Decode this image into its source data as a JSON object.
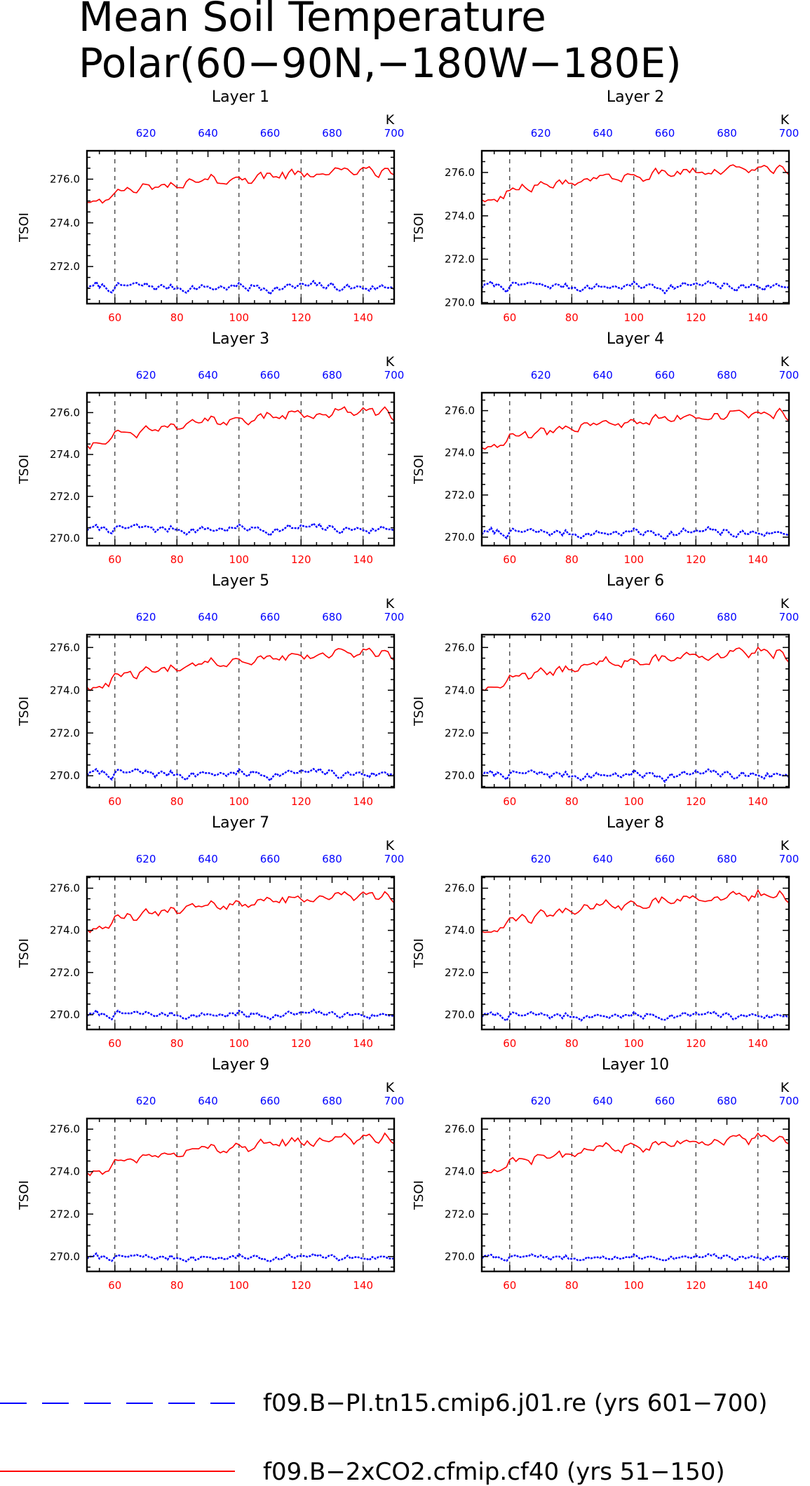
{
  "chart_data": {
    "type": "line",
    "title": [
      "Mean Soil Temperature",
      "Polar(60−90N,−180W−180E)"
    ],
    "ylabel": "TSOI",
    "bottom_axis": {
      "range": [
        51,
        150
      ],
      "ticks": [
        60,
        80,
        100,
        120,
        140
      ],
      "color": "#ff0000"
    },
    "top_axis": {
      "range": [
        601,
        700
      ],
      "ticks": [
        620,
        640,
        660,
        680,
        700
      ],
      "unit": "K",
      "color": "#0000ff"
    },
    "grid": "vertical dashed lines at 60, 80, 100, 120, 140",
    "legend_position": "bottom",
    "legend": [
      {
        "label": "f09.B−PI.tn15.cmip6.j01.re (yrs 601−700)",
        "color": "#0000ff",
        "style": "dashed"
      },
      {
        "label": "f09.B−2xCO2.cfmip.cf40 (yrs 51−150)",
        "color": "#ff0000",
        "style": "solid"
      }
    ],
    "panels": [
      {
        "title": "Layer 1",
        "ylim": [
          270.3,
          277.3
        ],
        "yticks": [
          "272.0",
          "274.0",
          "276.0"
        ],
        "y": [
          272,
          274,
          276
        ],
        "series": [
          {
            "color": "#ff0000",
            "style": "solid",
            "start": 275.0,
            "end": 276.4,
            "final": 276.2
          },
          {
            "color": "#0000ff",
            "style": "dashed",
            "mean": 271.05,
            "amp": 0.25
          }
        ]
      },
      {
        "title": "Layer 2",
        "ylim": [
          269.95,
          277.0
        ],
        "yticks": [
          "270.0",
          "272.0",
          "274.0",
          "276.0"
        ],
        "y": [
          270,
          272,
          274,
          276
        ],
        "series": [
          {
            "color": "#ff0000",
            "style": "solid",
            "start": 274.8,
            "end": 276.2,
            "final": 275.9
          },
          {
            "color": "#0000ff",
            "style": "dashed",
            "mean": 270.75,
            "amp": 0.25
          }
        ]
      },
      {
        "title": "Layer 3",
        "ylim": [
          269.65,
          276.95
        ],
        "yticks": [
          "270.0",
          "272.0",
          "274.0",
          "276.0"
        ],
        "y": [
          270,
          272,
          274,
          276
        ],
        "series": [
          {
            "color": "#ff0000",
            "style": "solid",
            "start": 274.5,
            "end": 276.1,
            "final": 275.6
          },
          {
            "color": "#0000ff",
            "style": "dashed",
            "mean": 270.45,
            "amp": 0.25
          }
        ]
      },
      {
        "title": "Layer 4",
        "ylim": [
          269.6,
          276.85
        ],
        "yticks": [
          "270.0",
          "272.0",
          "274.0",
          "276.0"
        ],
        "y": [
          270,
          272,
          274,
          276
        ],
        "series": [
          {
            "color": "#ff0000",
            "style": "solid",
            "start": 274.3,
            "end": 275.9,
            "final": 275.5
          },
          {
            "color": "#0000ff",
            "style": "dashed",
            "mean": 270.2,
            "amp": 0.25
          }
        ]
      },
      {
        "title": "Layer 5",
        "ylim": [
          269.45,
          276.6
        ],
        "yticks": [
          "270.0",
          "272.0",
          "274.0",
          "276.0"
        ],
        "y": [
          270,
          272,
          274,
          276
        ],
        "series": [
          {
            "color": "#ff0000",
            "style": "solid",
            "start": 274.2,
            "end": 275.8,
            "final": 275.4
          },
          {
            "color": "#0000ff",
            "style": "dashed",
            "mean": 270.1,
            "amp": 0.25
          }
        ]
      },
      {
        "title": "Layer 6",
        "ylim": [
          269.45,
          276.6
        ],
        "yticks": [
          "270.0",
          "272.0",
          "274.0",
          "276.0"
        ],
        "y": [
          270,
          272,
          274,
          276
        ],
        "series": [
          {
            "color": "#ff0000",
            "style": "solid",
            "start": 274.1,
            "end": 275.8,
            "final": 275.3
          },
          {
            "color": "#0000ff",
            "style": "dashed",
            "mean": 270.05,
            "amp": 0.25
          }
        ]
      },
      {
        "title": "Layer 7",
        "ylim": [
          269.3,
          276.55
        ],
        "yticks": [
          "270.0",
          "272.0",
          "274.0",
          "276.0"
        ],
        "y": [
          270,
          272,
          274,
          276
        ],
        "series": [
          {
            "color": "#ff0000",
            "style": "solid",
            "start": 274.1,
            "end": 275.7,
            "final": 275.3
          },
          {
            "color": "#0000ff",
            "style": "dashed",
            "mean": 270.0,
            "amp": 0.22
          }
        ]
      },
      {
        "title": "Layer 8",
        "ylim": [
          269.3,
          276.55
        ],
        "yticks": [
          "270.0",
          "272.0",
          "274.0",
          "276.0"
        ],
        "y": [
          270,
          272,
          274,
          276
        ],
        "series": [
          {
            "color": "#ff0000",
            "style": "solid",
            "start": 274.0,
            "end": 275.7,
            "final": 275.3
          },
          {
            "color": "#0000ff",
            "style": "dashed",
            "mean": 269.95,
            "amp": 0.2
          }
        ]
      },
      {
        "title": "Layer 9",
        "ylim": [
          269.3,
          276.5
        ],
        "yticks": [
          "270.0",
          "272.0",
          "274.0",
          "276.0"
        ],
        "y": [
          270,
          272,
          274,
          276
        ],
        "series": [
          {
            "color": "#ff0000",
            "style": "solid",
            "start": 274.0,
            "end": 275.6,
            "final": 275.3
          },
          {
            "color": "#0000ff",
            "style": "dashed",
            "mean": 269.95,
            "amp": 0.18
          }
        ]
      },
      {
        "title": "Layer 10",
        "ylim": [
          269.3,
          276.5
        ],
        "yticks": [
          "270.0",
          "272.0",
          "274.0",
          "276.0"
        ],
        "y": [
          270,
          272,
          274,
          276
        ],
        "series": [
          {
            "color": "#ff0000",
            "style": "solid",
            "start": 274.0,
            "end": 275.6,
            "final": 275.3
          },
          {
            "color": "#0000ff",
            "style": "dashed",
            "mean": 269.95,
            "amp": 0.15
          }
        ]
      }
    ]
  }
}
